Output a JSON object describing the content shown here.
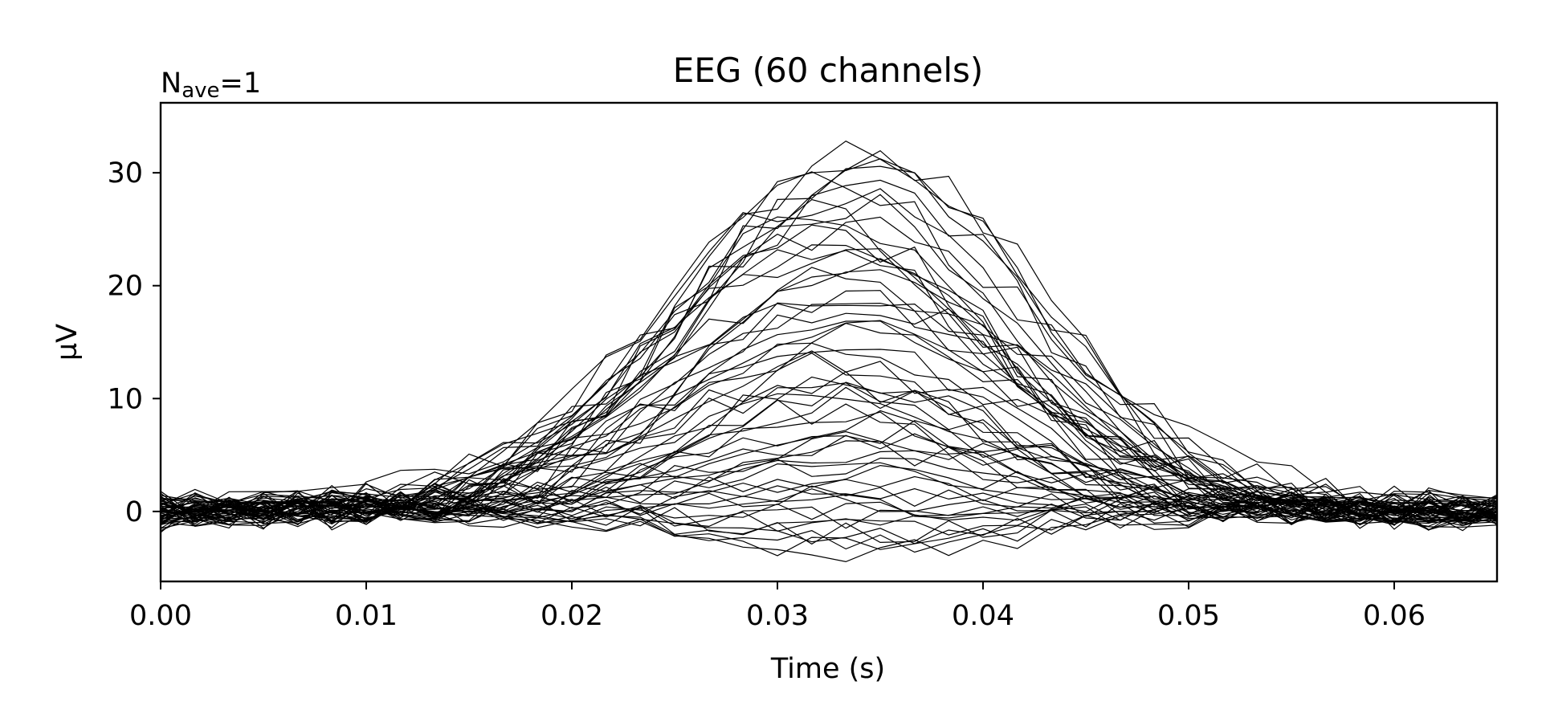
{
  "chart_data": {
    "type": "line",
    "title": "EEG (60 channels)",
    "annotation": {
      "base": "N",
      "sub": "ave",
      "suffix": "=1"
    },
    "xlabel": "Time (s)",
    "ylabel": "µV",
    "xlim": [
      0.0,
      0.065
    ],
    "ylim": [
      -6.2,
      36.2
    ],
    "x_ticks": [
      0.0,
      0.01,
      0.02,
      0.03,
      0.04,
      0.05,
      0.06
    ],
    "x_tick_labels": [
      "0.00",
      "0.01",
      "0.02",
      "0.03",
      "0.04",
      "0.05",
      "0.06"
    ],
    "y_ticks": [
      0,
      10,
      20,
      30
    ],
    "y_tick_labels": [
      "0",
      "10",
      "20",
      "30"
    ],
    "grid": false,
    "line_color": "#000000",
    "n_channels": 60,
    "x": [
      0.0,
      0.00167,
      0.00333,
      0.005,
      0.00667,
      0.00833,
      0.01,
      0.01167,
      0.01333,
      0.015,
      0.01667,
      0.01833,
      0.02,
      0.02167,
      0.02333,
      0.025,
      0.02667,
      0.02833,
      0.03,
      0.03167,
      0.03333,
      0.035,
      0.03667,
      0.03833,
      0.04,
      0.04167,
      0.04333,
      0.045,
      0.04667,
      0.04833,
      0.05,
      0.05167,
      0.05333,
      0.055,
      0.05667,
      0.05833,
      0.06,
      0.06167,
      0.06333,
      0.065
    ],
    "peak_amplitudes_uV": [
      32.0,
      31.5,
      30.8,
      30.2,
      29.6,
      28.9,
      28.2,
      27.5,
      26.8,
      26.1,
      25.4,
      24.7,
      24.0,
      23.3,
      22.6,
      21.9,
      21.2,
      20.5,
      19.8,
      19.1,
      18.4,
      17.7,
      17.0,
      16.3,
      15.6,
      14.9,
      14.2,
      13.5,
      12.8,
      12.1,
      11.5,
      11.0,
      10.5,
      10.0,
      9.5,
      9.0,
      8.4,
      7.8,
      7.2,
      6.6,
      6.0,
      5.4,
      4.8,
      4.2,
      3.6,
      3.0,
      2.5,
      2.0,
      1.5,
      1.0,
      0.5,
      0.0,
      -0.5,
      -1.0,
      -1.5,
      -2.0,
      -2.4,
      -2.8,
      -3.2,
      -3.6
    ],
    "peak_time_s": 0.0335,
    "peak_width_s": 0.0085,
    "noise_uV": 1.0
  }
}
